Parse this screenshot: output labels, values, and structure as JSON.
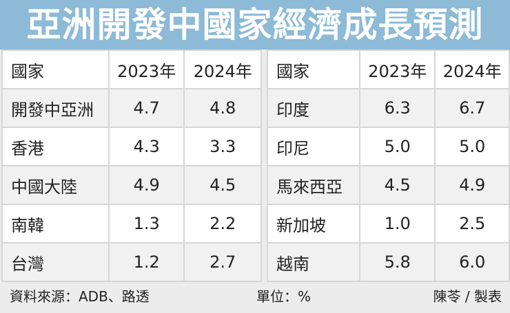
{
  "title": "亞洲開發中國家經濟成長預測",
  "headers": [
    "國家",
    "2023年",
    "2024年"
  ],
  "left": [
    {
      "country": "開發中亞洲",
      "y2023": "4.7",
      "y2024": "4.8"
    },
    {
      "country": "香港",
      "y2023": "4.3",
      "y2024": "3.3"
    },
    {
      "country": "中國大陸",
      "y2023": "4.9",
      "y2024": "4.5"
    },
    {
      "country": "南韓",
      "y2023": "1.3",
      "y2024": "2.2"
    },
    {
      "country": "台灣",
      "y2023": "1.2",
      "y2024": "2.7"
    }
  ],
  "right": [
    {
      "country": "印度",
      "y2023": "6.3",
      "y2024": "6.7"
    },
    {
      "country": "印尼",
      "y2023": "5.0",
      "y2024": "5.0"
    },
    {
      "country": "馬來西亞",
      "y2023": "4.5",
      "y2024": "4.9"
    },
    {
      "country": "新加坡",
      "y2023": "1.0",
      "y2024": "2.5"
    },
    {
      "country": "越南",
      "y2023": "5.8",
      "y2024": "6.0"
    }
  ],
  "footer": {
    "source": "資料來源：ADB、路透",
    "unit": "單位：%",
    "credit": "陳苓 / 製表"
  },
  "colors": {
    "title_bg": "#8cbad7",
    "row_alt": "#f1f1f1",
    "footer_bg": "#ececec"
  }
}
